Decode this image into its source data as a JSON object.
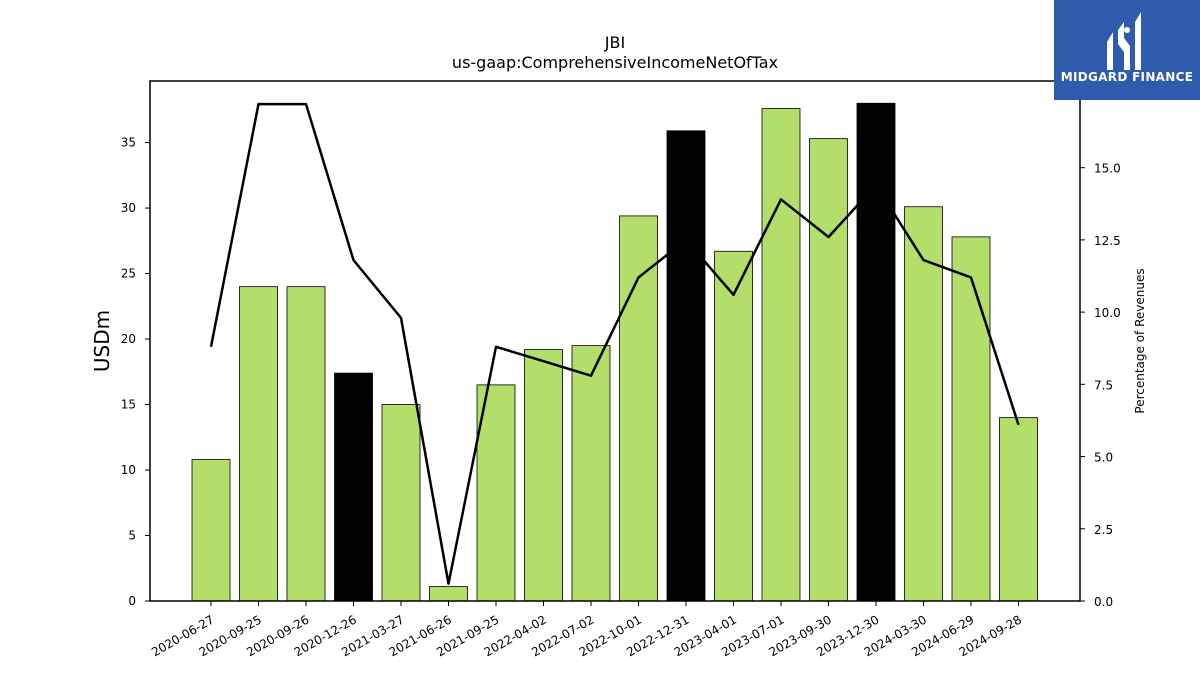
{
  "chart_data": {
    "type": "bar",
    "title": "JBI",
    "subtitle": "us-gaap:ComprehensiveIncomeNetOfTax",
    "ylabel": "USDm",
    "y2label": "Percentage of Revenues",
    "ylim": [
      0,
      39.7
    ],
    "y2lim": [
      0,
      18.0
    ],
    "yticks": [
      0,
      5,
      10,
      15,
      20,
      25,
      30,
      35
    ],
    "y2ticks": [
      "0.0",
      "2.5",
      "5.0",
      "7.5",
      "10.0",
      "12.5",
      "15.0"
    ],
    "categories": [
      "2020-06-27",
      "2020-09-25",
      "2020-09-26",
      "2020-12-26",
      "2021-03-27",
      "2021-06-26",
      "2021-09-25",
      "2022-04-02",
      "2022-07-02",
      "2022-10-01",
      "2022-12-31",
      "2023-04-01",
      "2023-07-01",
      "2023-09-30",
      "2023-12-30",
      "2024-03-30",
      "2024-06-29",
      "2024-09-28"
    ],
    "series": [
      {
        "axis": "left",
        "kind": "bar",
        "values": [
          10.8,
          24.0,
          24.0,
          17.4,
          15.0,
          1.1,
          16.5,
          19.2,
          19.5,
          29.4,
          35.9,
          26.7,
          37.6,
          35.3,
          38.0,
          30.1,
          27.8,
          14.0
        ],
        "colors": [
          "#b3de69",
          "#b3de69",
          "#b3de69",
          "#000000",
          "#b3de69",
          "#b3de69",
          "#b3de69",
          "#b3de69",
          "#b3de69",
          "#b3de69",
          "#000000",
          "#b3de69",
          "#b3de69",
          "#b3de69",
          "#000000",
          "#b3de69",
          "#b3de69",
          "#b3de69"
        ]
      },
      {
        "axis": "right",
        "kind": "line",
        "color": "#000000",
        "values": [
          8.8,
          17.2,
          17.2,
          11.8,
          9.8,
          0.6,
          8.8,
          8.3,
          7.8,
          11.2,
          12.5,
          10.6,
          13.9,
          12.6,
          14.4,
          11.8,
          11.2,
          6.1
        ]
      }
    ],
    "grid": false,
    "legend": "none"
  },
  "brand": {
    "name": "MIDGARD FINANCE",
    "background": "#2e5bab",
    "text_color": "#ffffff",
    "icon": "midgard-logo-icon"
  }
}
